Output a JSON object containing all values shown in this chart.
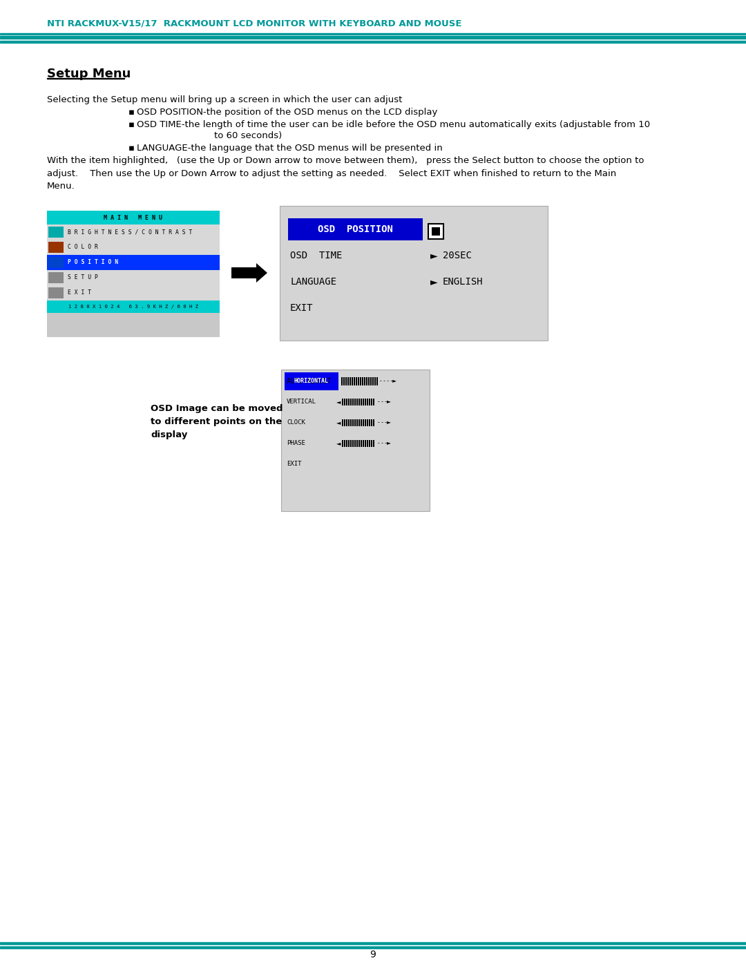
{
  "title_header": "NTI RACKMUX-V15/17  RACKMOUNT LCD MONITOR WITH KEYBOARD AND MOUSE",
  "section_title": "Setup Menu",
  "body_text_1": "Selecting the Setup menu will bring up a screen in which the user can adjust",
  "bullet1": "OSD POSITION-the position of the OSD menus on the LCD display",
  "bullet2": "OSD TIME-the length of time the user can be idle before the OSD menu automatically exits (adjustable from 10",
  "bullet2b": "to 60 seconds)",
  "bullet3": "LANGUAGE-the language that the OSD menus will be presented in",
  "body_text_2": "With the item highlighted,   (use the Up or Down arrow to move between them),   press the Select button to choose the option to\nadjust.    Then use the Up or Down Arrow to adjust the setting as needed.    Select EXIT when finished to return to the Main\nMenu.",
  "page_number": "9",
  "teal_color": "#009999",
  "bg_color": "#ffffff",
  "text_color": "#000000",
  "main_menu_header": "M A I N   M E N U",
  "main_menu_rows": [
    "B R I G H T N E S S / C O N T R A S T",
    "C O L O R",
    "P O S I T I O N",
    "S E T U P",
    "E X I T"
  ],
  "main_menu_highlighted": 2,
  "main_menu_status": "1 2 8 0 X 1 0 2 4   6 3 . 9 K H Z / 6 0 H Z",
  "pos_rows": [
    "OSD  POSITION",
    "OSD  TIME",
    "LANGUAGE",
    "EXIT"
  ],
  "pos_vals": [
    "",
    "20SEC",
    "ENGLISH",
    ""
  ],
  "sub_rows": [
    "HORIZONTAL",
    "VERTICAL",
    "CLOCK",
    "PHASE",
    "EXIT"
  ],
  "caption": "OSD Image can be moved\nto different points on the\ndisplay"
}
